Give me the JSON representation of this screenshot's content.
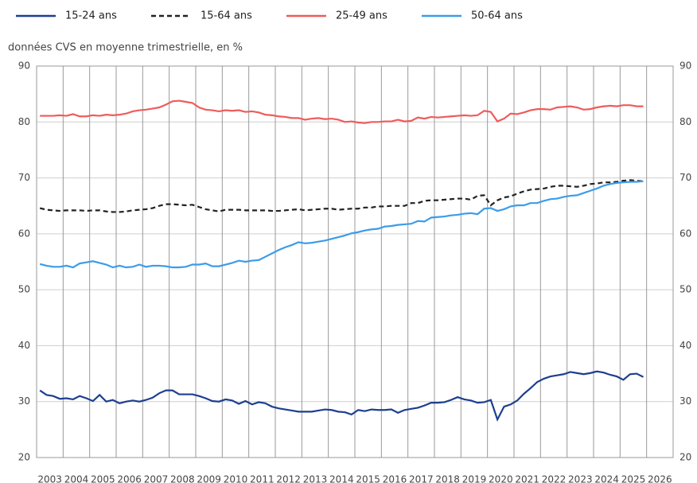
{
  "chart_data": {
    "type": "line",
    "subtitle": "données CVS en moyenne trimestrielle, en %",
    "x": [
      2003.125,
      2003.375,
      2003.625,
      2003.875,
      2004.125,
      2004.375,
      2004.625,
      2004.875,
      2005.125,
      2005.375,
      2005.625,
      2005.875,
      2006.125,
      2006.375,
      2006.625,
      2006.875,
      2007.125,
      2007.375,
      2007.625,
      2007.875,
      2008.125,
      2008.375,
      2008.625,
      2008.875,
      2009.125,
      2009.375,
      2009.625,
      2009.875,
      2010.125,
      2010.375,
      2010.625,
      2010.875,
      2011.125,
      2011.375,
      2011.625,
      2011.875,
      2012.125,
      2012.375,
      2012.625,
      2012.875,
      2013.125,
      2013.375,
      2013.625,
      2013.875,
      2014.125,
      2014.375,
      2014.625,
      2014.875,
      2015.125,
      2015.375,
      2015.625,
      2015.875,
      2016.125,
      2016.375,
      2016.625,
      2016.875,
      2017.125,
      2017.375,
      2017.625,
      2017.875,
      2018.125,
      2018.375,
      2018.625,
      2018.875,
      2019.125,
      2019.375,
      2019.625,
      2019.875,
      2020.125,
      2020.375,
      2020.625,
      2020.875,
      2021.125,
      2021.375,
      2021.625,
      2021.875,
      2022.125,
      2022.375,
      2022.625,
      2022.875,
      2023.125,
      2023.375,
      2023.625,
      2023.875,
      2024.125,
      2024.375,
      2024.625,
      2024.875,
      2025.125,
      2025.375,
      2025.625,
      2025.875
    ],
    "series": [
      {
        "name": "15-24 ans",
        "color": "#1d3f8f",
        "dash": false,
        "values": [
          32,
          31.2,
          31,
          30.5,
          30.6,
          30.4,
          31,
          30.6,
          30.1,
          31.2,
          30,
          30.3,
          29.7,
          30,
          30.2,
          30,
          30.3,
          30.7,
          31.5,
          32,
          32,
          31.3,
          31.3,
          31.3,
          31,
          30.6,
          30.1,
          30,
          30.4,
          30.2,
          29.6,
          30.1,
          29.5,
          29.9,
          29.7,
          29.1,
          28.8,
          28.6,
          28.4,
          28.2,
          28.2,
          28.2,
          28.4,
          28.6,
          28.5,
          28.2,
          28.1,
          27.7,
          28.5,
          28.3,
          28.6,
          28.5,
          28.5,
          28.6,
          28,
          28.5,
          28.7,
          28.9,
          29.3,
          29.8,
          29.8,
          29.9,
          30.3,
          30.8,
          30.4,
          30.2,
          29.8,
          29.9,
          30.3,
          26.8,
          29.1,
          29.5,
          30.2,
          31.4,
          32.4,
          33.5,
          34.1,
          34.5,
          34.7,
          34.9,
          35.3,
          35.1,
          34.9,
          35.1,
          35.4,
          35.2,
          34.8,
          34.5,
          33.9,
          34.9,
          35,
          34.4
        ]
      },
      {
        "name": "15-64 ans",
        "color": "#222222",
        "dash": true,
        "values": [
          64.6,
          64.3,
          64.2,
          64.1,
          64.2,
          64.2,
          64.2,
          64.1,
          64.2,
          64.2,
          64,
          63.9,
          63.9,
          64,
          64.2,
          64.3,
          64.4,
          64.6,
          65,
          65.3,
          65.3,
          65.2,
          65.1,
          65.2,
          64.8,
          64.4,
          64.2,
          64,
          64.3,
          64.3,
          64.3,
          64.2,
          64.2,
          64.2,
          64.2,
          64.1,
          64.1,
          64.2,
          64.3,
          64.4,
          64.2,
          64.3,
          64.4,
          64.5,
          64.5,
          64.3,
          64.4,
          64.5,
          64.5,
          64.7,
          64.7,
          64.9,
          64.9,
          65,
          65,
          65,
          65.5,
          65.5,
          65.9,
          66,
          66,
          66.1,
          66.2,
          66.3,
          66.3,
          66.1,
          66.8,
          66.9,
          65.1,
          66,
          66.5,
          66.7,
          67.2,
          67.6,
          67.9,
          68,
          68.1,
          68.4,
          68.6,
          68.6,
          68.5,
          68.4,
          68.6,
          68.9,
          69,
          69.2,
          69.2,
          69.3,
          69.5,
          69.6,
          69.5,
          69.4
        ]
      },
      {
        "name": "25-49 ans",
        "color": "#ef5b5b",
        "dash": false,
        "values": [
          81.1,
          81.1,
          81.1,
          81.2,
          81.1,
          81.4,
          81,
          81,
          81.2,
          81.1,
          81.3,
          81.2,
          81.3,
          81.5,
          81.9,
          82.1,
          82.2,
          82.4,
          82.6,
          83.1,
          83.7,
          83.8,
          83.6,
          83.4,
          82.6,
          82.2,
          82.1,
          81.9,
          82.1,
          82,
          82.1,
          81.8,
          81.9,
          81.7,
          81.3,
          81.2,
          81,
          80.9,
          80.7,
          80.7,
          80.4,
          80.6,
          80.7,
          80.5,
          80.6,
          80.4,
          80,
          80.1,
          79.9,
          79.8,
          80,
          80,
          80.1,
          80.1,
          80.4,
          80.1,
          80.2,
          80.8,
          80.6,
          80.9,
          80.8,
          80.9,
          81,
          81.1,
          81.2,
          81.1,
          81.2,
          82,
          81.8,
          80.1,
          80.6,
          81.5,
          81.4,
          81.7,
          82.1,
          82.3,
          82.3,
          82.2,
          82.6,
          82.7,
          82.8,
          82.6,
          82.2,
          82.3,
          82.6,
          82.8,
          82.9,
          82.8,
          83,
          83,
          82.8,
          82.8
        ]
      },
      {
        "name": "50-64 ans",
        "color": "#3b9ce9",
        "dash": false,
        "values": [
          54.6,
          54.3,
          54.1,
          54.1,
          54.3,
          54,
          54.7,
          54.9,
          55.1,
          54.8,
          54.5,
          54,
          54.3,
          54,
          54.1,
          54.5,
          54.1,
          54.3,
          54.3,
          54.2,
          54,
          54,
          54.1,
          54.5,
          54.5,
          54.7,
          54.2,
          54.2,
          54.5,
          54.8,
          55.2,
          55,
          55.2,
          55.3,
          55.9,
          56.5,
          57.1,
          57.6,
          58,
          58.5,
          58.3,
          58.4,
          58.6,
          58.8,
          59.1,
          59.4,
          59.7,
          60.1,
          60.3,
          60.6,
          60.8,
          60.9,
          61.3,
          61.4,
          61.6,
          61.7,
          61.8,
          62.3,
          62.2,
          62.9,
          63,
          63.1,
          63.3,
          63.4,
          63.6,
          63.7,
          63.5,
          64.5,
          64.6,
          64.1,
          64.4,
          64.9,
          65.1,
          65.1,
          65.5,
          65.5,
          65.9,
          66.2,
          66.3,
          66.6,
          66.8,
          66.9,
          67.3,
          67.7,
          68.1,
          68.6,
          68.9,
          69.1,
          69.2,
          69.3,
          69.3,
          69.4
        ]
      }
    ],
    "xlim": [
      2003,
      2027
    ],
    "xticks": [
      {
        "value": 2003,
        "label": "2003"
      },
      {
        "value": 2004,
        "label": "2004"
      },
      {
        "value": 2005,
        "label": "2005"
      },
      {
        "value": 2006,
        "label": "2006"
      },
      {
        "value": 2007,
        "label": "2007"
      },
      {
        "value": 2008,
        "label": "2008"
      },
      {
        "value": 2009,
        "label": "2009"
      },
      {
        "value": 2010,
        "label": "2010"
      },
      {
        "value": 2011,
        "label": "2011"
      },
      {
        "value": 2012,
        "label": "2012"
      },
      {
        "value": 2013,
        "label": "2013"
      },
      {
        "value": 2014,
        "label": "2014"
      },
      {
        "value": 2015,
        "label": "2015"
      },
      {
        "value": 2016,
        "label": "2016"
      },
      {
        "value": 2017,
        "label": "2017"
      },
      {
        "value": 2018,
        "label": "2018"
      },
      {
        "value": 2019,
        "label": "2019"
      },
      {
        "value": 2020,
        "label": "2020"
      },
      {
        "value": 2021,
        "label": "2021"
      },
      {
        "value": 2022,
        "label": "2022"
      },
      {
        "value": 2023,
        "label": "2023"
      },
      {
        "value": 2024,
        "label": "2024"
      },
      {
        "value": 2025,
        "label": "2025"
      },
      {
        "value": 2026,
        "label": "2026"
      }
    ],
    "ylim": [
      20,
      90
    ],
    "yticks": [
      20,
      30,
      40,
      50,
      60,
      70,
      80,
      90
    ],
    "y2lim": [
      20,
      90
    ],
    "y2ticks": [
      20,
      30,
      40,
      50,
      60,
      70,
      80,
      90
    ],
    "grid": true,
    "legend": "top"
  }
}
